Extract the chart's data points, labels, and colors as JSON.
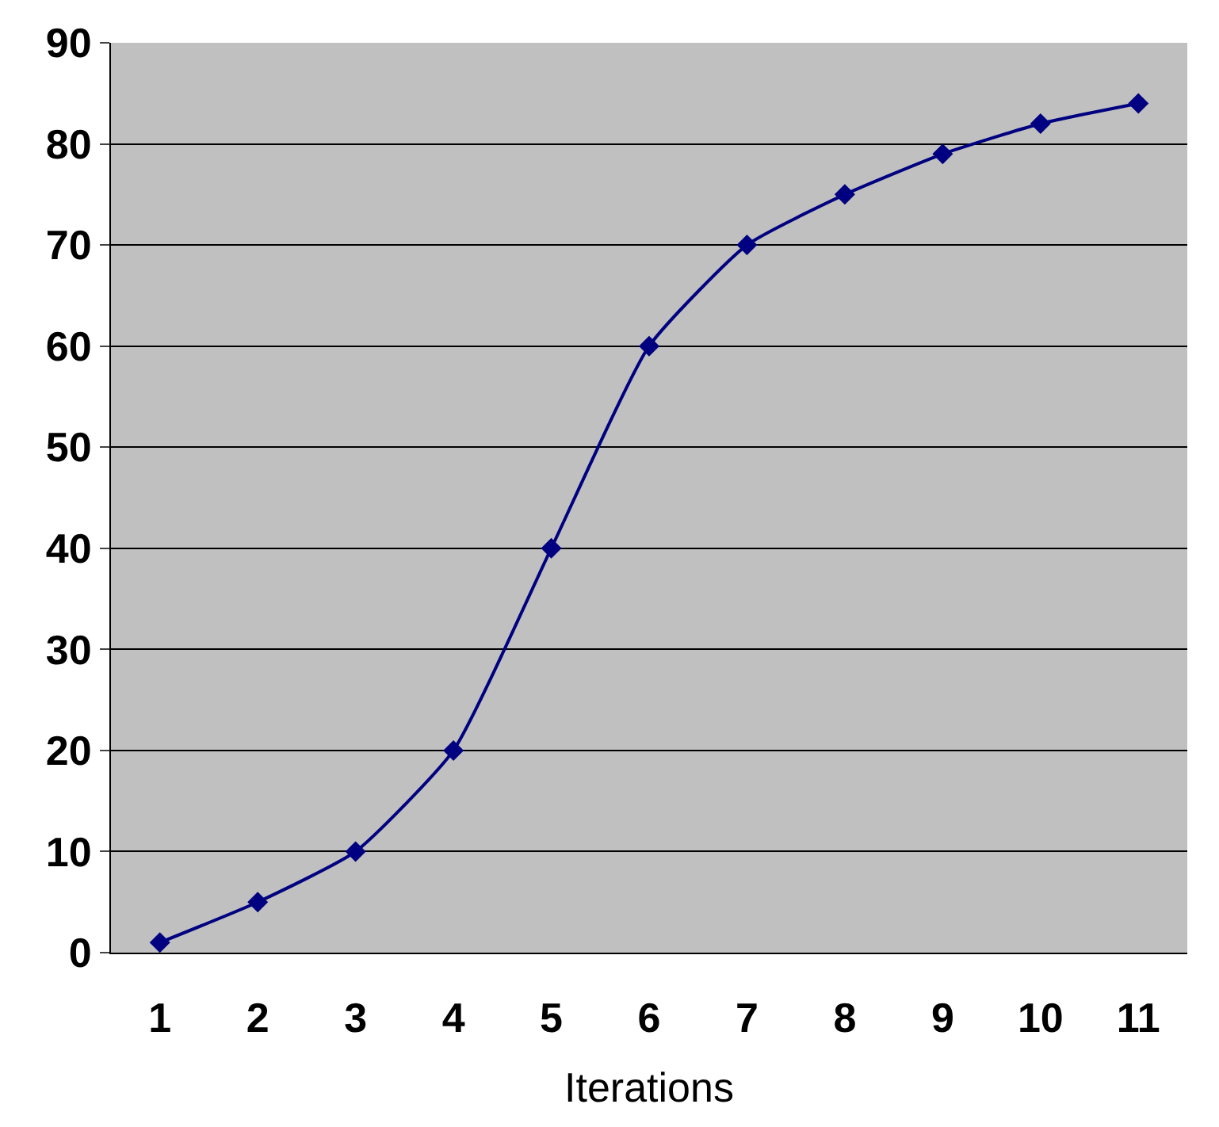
{
  "chart_data": {
    "type": "line",
    "xlabel": "Iterations",
    "categories": [
      "1",
      "2",
      "3",
      "4",
      "5",
      "6",
      "7",
      "8",
      "9",
      "10",
      "11"
    ],
    "series": [
      {
        "color": "#000080",
        "values": [
          1,
          5,
          10,
          20,
          40,
          60,
          70,
          75,
          79,
          82,
          84
        ]
      }
    ],
    "ylim": [
      0,
      90
    ],
    "yticks": [
      0,
      10,
      20,
      30,
      40,
      50,
      60,
      70,
      80,
      90
    ],
    "grid": "y",
    "marker": "diamond",
    "line_style": "solid"
  }
}
